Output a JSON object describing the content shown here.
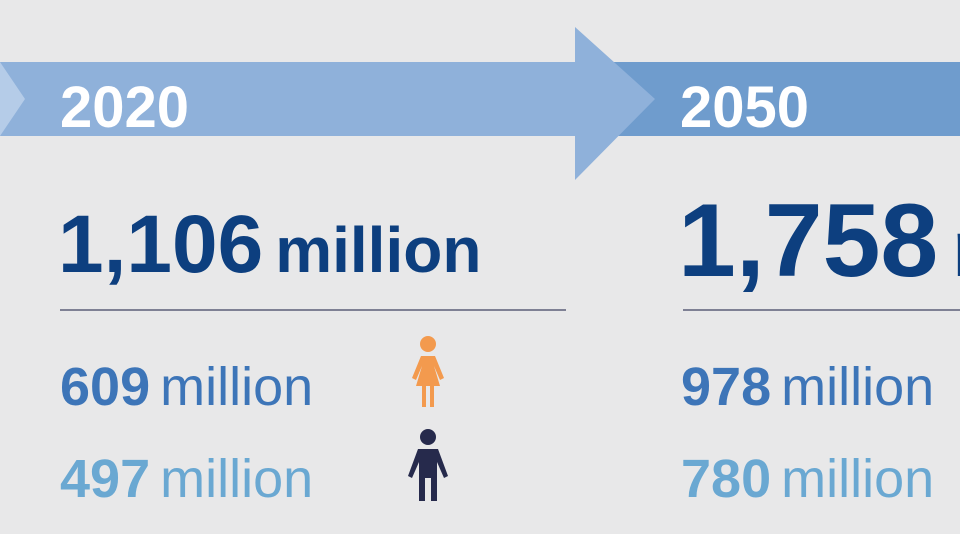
{
  "columns": [
    {
      "year": "2020",
      "total": {
        "value": "1,106",
        "unit": "million"
      },
      "female": {
        "value": "609",
        "unit": "million"
      },
      "male": {
        "value": "497",
        "unit": "million"
      }
    },
    {
      "year": "2050",
      "total": {
        "value": "1,758",
        "unit": "million"
      },
      "female": {
        "value": "978",
        "unit": "million"
      },
      "male": {
        "value": "780",
        "unit": "million"
      }
    }
  ]
}
